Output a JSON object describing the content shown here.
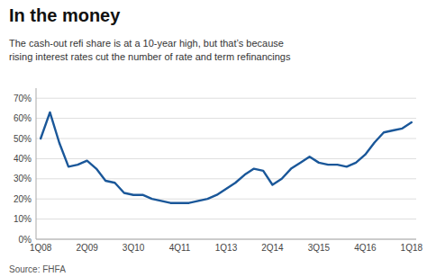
{
  "chart_data": {
    "type": "line",
    "title": "In the money",
    "subtitle": "The cash-out refi share is at a 10-year high, but that’s because\nrising interest rates cut the number of rate and term refinancings",
    "source": "Source: FHFA",
    "categories": [
      "1Q08",
      null,
      null,
      null,
      null,
      "2Q09",
      null,
      null,
      null,
      null,
      "3Q10",
      null,
      null,
      null,
      null,
      "4Q11",
      null,
      null,
      null,
      null,
      "1Q13",
      null,
      null,
      null,
      null,
      "2Q14",
      null,
      null,
      null,
      null,
      "3Q15",
      null,
      null,
      null,
      null,
      "4Q16",
      null,
      null,
      null,
      null,
      "1Q18"
    ],
    "values": [
      50,
      63,
      48,
      36,
      37,
      39,
      35,
      29,
      28,
      23,
      22,
      22,
      20,
      19,
      18,
      18,
      18,
      19,
      20,
      22,
      25,
      28,
      32,
      35,
      34,
      27,
      30,
      35,
      38,
      41,
      38,
      37,
      37,
      36,
      38,
      42,
      48,
      53,
      54,
      55,
      58
    ],
    "color": "#1a5799",
    "ylim": [
      0,
      75
    ],
    "yticks": [
      {
        "value": 0,
        "label": "0%"
      },
      {
        "value": 10,
        "label": "10%"
      },
      {
        "value": 20,
        "label": "20%"
      },
      {
        "value": 30,
        "label": "30%"
      },
      {
        "value": 40,
        "label": "40%"
      },
      {
        "value": 50,
        "label": "50%"
      },
      {
        "value": 60,
        "label": "60%"
      },
      {
        "value": 70,
        "label": "70%"
      }
    ],
    "grid": true
  }
}
